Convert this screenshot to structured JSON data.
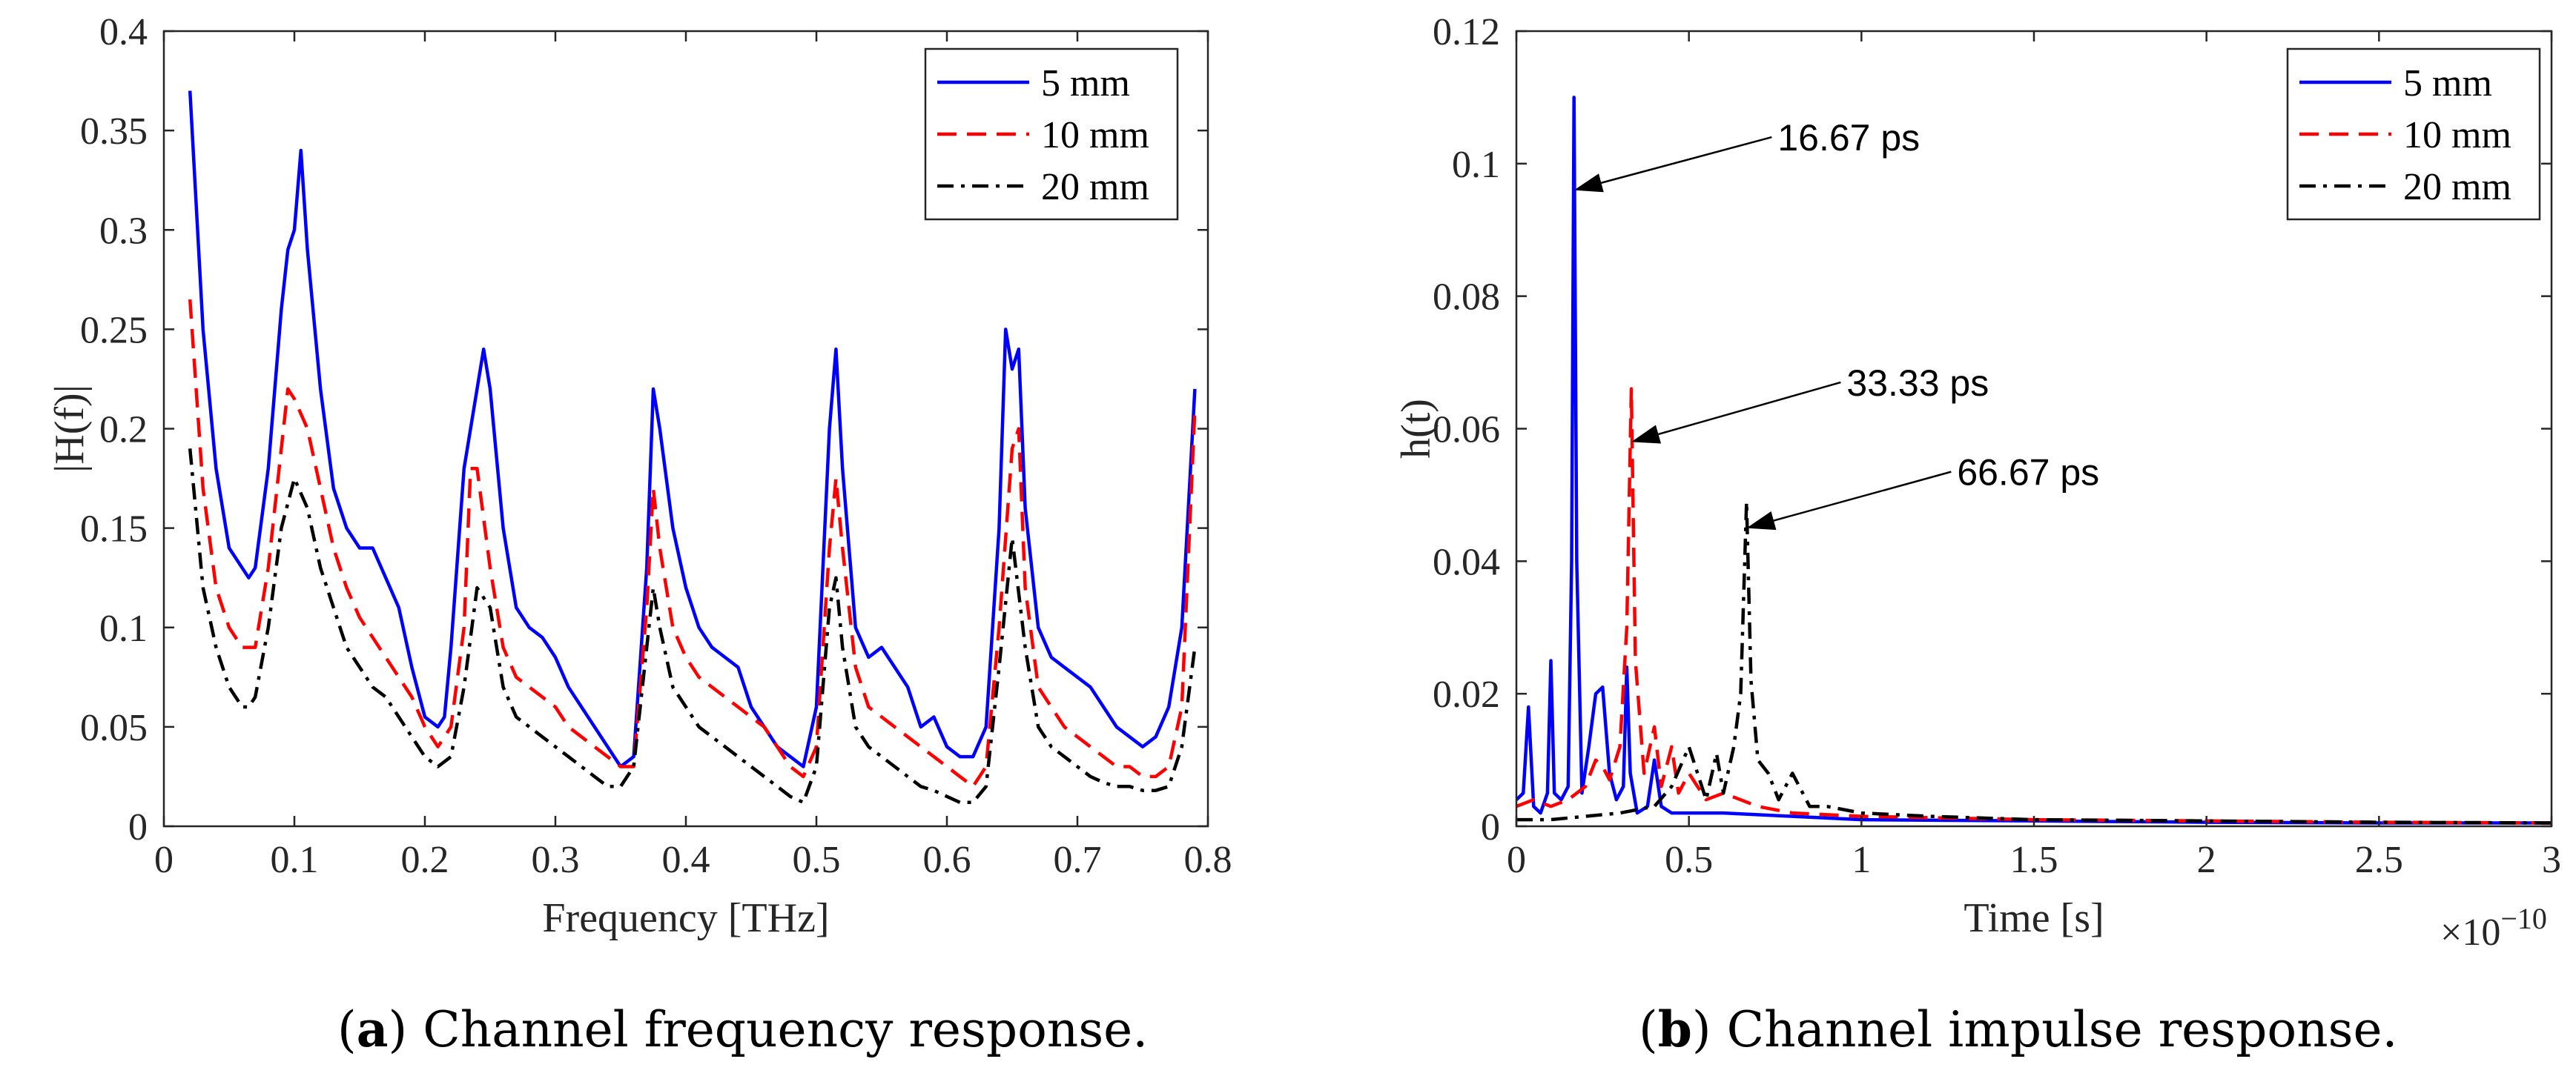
{
  "captions": [
    {
      "label": "a",
      "text": " Channel frequency response."
    },
    {
      "label": "b",
      "text": " Channel impulse response."
    }
  ],
  "chart_data": [
    {
      "type": "line",
      "title": "",
      "xlabel": "Frequency [THz]",
      "ylabel": "|H(f)|",
      "xlim": [
        0,
        0.8
      ],
      "ylim": [
        0,
        0.4
      ],
      "xticks": [
        0,
        0.1,
        0.2,
        0.3,
        0.4,
        0.5,
        0.6,
        0.7,
        0.8
      ],
      "xtick_labels": [
        "0",
        "0.1",
        "0.2",
        "0.3",
        "0.4",
        "0.5",
        "0.6",
        "0.7",
        "0.8"
      ],
      "yticks": [
        0,
        0.05,
        0.1,
        0.15,
        0.2,
        0.25,
        0.3,
        0.35,
        0.4
      ],
      "ytick_labels": [
        "0",
        "0.05",
        "0.1",
        "0.15",
        "0.2",
        "0.25",
        "0.3",
        "0.35",
        "0.4"
      ],
      "grid": false,
      "legend_position": "top-right",
      "series": [
        {
          "name": "5 mm",
          "color": "#0000ff",
          "style": "solid",
          "x": [
            0.02,
            0.03,
            0.04,
            0.05,
            0.06,
            0.065,
            0.07,
            0.08,
            0.09,
            0.095,
            0.1,
            0.105,
            0.11,
            0.12,
            0.13,
            0.14,
            0.15,
            0.16,
            0.17,
            0.18,
            0.19,
            0.2,
            0.21,
            0.215,
            0.22,
            0.23,
            0.24,
            0.245,
            0.25,
            0.26,
            0.27,
            0.28,
            0.29,
            0.3,
            0.31,
            0.32,
            0.33,
            0.34,
            0.35,
            0.36,
            0.37,
            0.375,
            0.38,
            0.39,
            0.4,
            0.41,
            0.42,
            0.43,
            0.44,
            0.45,
            0.46,
            0.47,
            0.48,
            0.49,
            0.5,
            0.51,
            0.515,
            0.52,
            0.53,
            0.54,
            0.55,
            0.56,
            0.57,
            0.58,
            0.59,
            0.6,
            0.61,
            0.62,
            0.63,
            0.64,
            0.645,
            0.65,
            0.655,
            0.66,
            0.67,
            0.68,
            0.69,
            0.7,
            0.71,
            0.72,
            0.73,
            0.74,
            0.75,
            0.76,
            0.77,
            0.78,
            0.79
          ],
          "y": [
            0.37,
            0.25,
            0.18,
            0.14,
            0.13,
            0.125,
            0.13,
            0.18,
            0.26,
            0.29,
            0.3,
            0.34,
            0.29,
            0.22,
            0.17,
            0.15,
            0.14,
            0.14,
            0.125,
            0.11,
            0.08,
            0.055,
            0.05,
            0.055,
            0.09,
            0.18,
            0.22,
            0.24,
            0.22,
            0.15,
            0.11,
            0.1,
            0.095,
            0.085,
            0.07,
            0.06,
            0.05,
            0.04,
            0.03,
            0.035,
            0.13,
            0.22,
            0.2,
            0.15,
            0.12,
            0.1,
            0.09,
            0.085,
            0.08,
            0.06,
            0.05,
            0.04,
            0.035,
            0.03,
            0.06,
            0.2,
            0.24,
            0.18,
            0.1,
            0.085,
            0.09,
            0.08,
            0.07,
            0.05,
            0.055,
            0.04,
            0.035,
            0.035,
            0.05,
            0.15,
            0.25,
            0.23,
            0.24,
            0.16,
            0.1,
            0.085,
            0.08,
            0.075,
            0.07,
            0.06,
            0.05,
            0.045,
            0.04,
            0.045,
            0.06,
            0.1,
            0.22
          ]
        },
        {
          "name": "10 mm",
          "color": "#ff0000",
          "style": "dashed",
          "x": [
            0.02,
            0.03,
            0.04,
            0.05,
            0.06,
            0.07,
            0.08,
            0.09,
            0.095,
            0.1,
            0.11,
            0.12,
            0.13,
            0.14,
            0.15,
            0.16,
            0.17,
            0.18,
            0.19,
            0.2,
            0.21,
            0.22,
            0.23,
            0.235,
            0.24,
            0.25,
            0.26,
            0.27,
            0.28,
            0.29,
            0.3,
            0.31,
            0.32,
            0.33,
            0.34,
            0.35,
            0.36,
            0.37,
            0.375,
            0.38,
            0.39,
            0.4,
            0.41,
            0.42,
            0.43,
            0.44,
            0.45,
            0.46,
            0.47,
            0.48,
            0.49,
            0.5,
            0.51,
            0.515,
            0.52,
            0.53,
            0.54,
            0.55,
            0.56,
            0.57,
            0.58,
            0.59,
            0.6,
            0.61,
            0.62,
            0.63,
            0.64,
            0.65,
            0.655,
            0.66,
            0.67,
            0.68,
            0.69,
            0.7,
            0.71,
            0.72,
            0.73,
            0.74,
            0.75,
            0.76,
            0.77,
            0.78,
            0.79
          ],
          "y": [
            0.265,
            0.17,
            0.12,
            0.1,
            0.09,
            0.09,
            0.13,
            0.19,
            0.22,
            0.215,
            0.2,
            0.17,
            0.14,
            0.12,
            0.105,
            0.095,
            0.085,
            0.075,
            0.065,
            0.05,
            0.04,
            0.05,
            0.1,
            0.18,
            0.18,
            0.13,
            0.09,
            0.075,
            0.07,
            0.065,
            0.06,
            0.05,
            0.045,
            0.04,
            0.035,
            0.03,
            0.03,
            0.11,
            0.17,
            0.14,
            0.1,
            0.085,
            0.075,
            0.07,
            0.065,
            0.06,
            0.055,
            0.05,
            0.04,
            0.03,
            0.025,
            0.04,
            0.14,
            0.175,
            0.14,
            0.08,
            0.06,
            0.055,
            0.05,
            0.045,
            0.04,
            0.035,
            0.03,
            0.025,
            0.02,
            0.03,
            0.1,
            0.19,
            0.2,
            0.12,
            0.07,
            0.06,
            0.05,
            0.045,
            0.04,
            0.035,
            0.03,
            0.03,
            0.025,
            0.025,
            0.03,
            0.06,
            0.21
          ]
        },
        {
          "name": "20 mm",
          "color": "#000000",
          "style": "dashdot",
          "x": [
            0.02,
            0.03,
            0.04,
            0.05,
            0.06,
            0.065,
            0.07,
            0.08,
            0.09,
            0.1,
            0.11,
            0.12,
            0.13,
            0.14,
            0.15,
            0.16,
            0.17,
            0.18,
            0.19,
            0.2,
            0.21,
            0.22,
            0.23,
            0.24,
            0.25,
            0.26,
            0.27,
            0.28,
            0.29,
            0.3,
            0.31,
            0.32,
            0.33,
            0.34,
            0.35,
            0.36,
            0.37,
            0.375,
            0.38,
            0.39,
            0.4,
            0.41,
            0.42,
            0.43,
            0.44,
            0.45,
            0.46,
            0.47,
            0.48,
            0.49,
            0.5,
            0.51,
            0.515,
            0.52,
            0.53,
            0.54,
            0.55,
            0.56,
            0.57,
            0.58,
            0.59,
            0.6,
            0.61,
            0.62,
            0.63,
            0.64,
            0.65,
            0.66,
            0.67,
            0.68,
            0.69,
            0.7,
            0.71,
            0.72,
            0.73,
            0.74,
            0.75,
            0.76,
            0.77,
            0.78,
            0.79
          ],
          "y": [
            0.19,
            0.12,
            0.09,
            0.07,
            0.06,
            0.06,
            0.065,
            0.1,
            0.15,
            0.175,
            0.16,
            0.13,
            0.11,
            0.09,
            0.08,
            0.07,
            0.065,
            0.055,
            0.045,
            0.035,
            0.03,
            0.035,
            0.07,
            0.12,
            0.11,
            0.07,
            0.055,
            0.05,
            0.045,
            0.04,
            0.035,
            0.03,
            0.025,
            0.02,
            0.02,
            0.03,
            0.09,
            0.12,
            0.1,
            0.07,
            0.06,
            0.05,
            0.045,
            0.04,
            0.035,
            0.03,
            0.025,
            0.02,
            0.015,
            0.012,
            0.03,
            0.11,
            0.125,
            0.09,
            0.05,
            0.04,
            0.035,
            0.03,
            0.025,
            0.02,
            0.018,
            0.015,
            0.012,
            0.012,
            0.02,
            0.08,
            0.145,
            0.09,
            0.05,
            0.04,
            0.035,
            0.03,
            0.025,
            0.022,
            0.02,
            0.02,
            0.018,
            0.018,
            0.02,
            0.04,
            0.09
          ]
        }
      ]
    },
    {
      "type": "line",
      "title": "",
      "xlabel": "Time [s]",
      "ylabel": "h(t)",
      "xlim": [
        0,
        3
      ],
      "ylim": [
        0,
        0.12
      ],
      "x_multiplier_label": "×10",
      "x_multiplier_exponent": "−10",
      "xticks": [
        0,
        0.5,
        1,
        1.5,
        2,
        2.5,
        3
      ],
      "xtick_labels": [
        "0",
        "0.5",
        "1",
        "1.5",
        "2",
        "2.5",
        "3"
      ],
      "yticks": [
        0,
        0.02,
        0.04,
        0.06,
        0.08,
        0.1,
        0.12
      ],
      "ytick_labels": [
        "0",
        "0.02",
        "0.04",
        "0.06",
        "0.08",
        "0.1",
        "0.12"
      ],
      "grid": false,
      "legend_position": "top-right",
      "annotations": [
        {
          "text": "16.67 ps",
          "x": 0.167,
          "y": 0.096,
          "text_x": 0.74,
          "text_y": 0.104
        },
        {
          "text": "33.33 ps",
          "x": 0.333,
          "y": 0.058,
          "text_x": 0.94,
          "text_y": 0.067
        },
        {
          "text": "66.67 ps",
          "x": 0.667,
          "y": 0.045,
          "text_x": 1.26,
          "text_y": 0.0535
        }
      ],
      "series": [
        {
          "name": "5 mm",
          "color": "#0000ff",
          "style": "solid",
          "x": [
            0,
            0.02,
            0.035,
            0.05,
            0.07,
            0.09,
            0.1,
            0.11,
            0.13,
            0.15,
            0.16,
            0.167,
            0.175,
            0.19,
            0.21,
            0.23,
            0.25,
            0.27,
            0.29,
            0.31,
            0.32,
            0.33,
            0.35,
            0.38,
            0.4,
            0.42,
            0.45,
            0.5,
            0.6,
            0.8,
            1.0,
            1.5,
            2.0,
            2.5,
            3.0
          ],
          "y": [
            0.004,
            0.005,
            0.018,
            0.003,
            0.002,
            0.005,
            0.025,
            0.005,
            0.004,
            0.006,
            0.04,
            0.11,
            0.04,
            0.005,
            0.012,
            0.02,
            0.021,
            0.008,
            0.004,
            0.006,
            0.024,
            0.008,
            0.002,
            0.003,
            0.01,
            0.003,
            0.002,
            0.002,
            0.002,
            0.0015,
            0.001,
            0.0008,
            0.0006,
            0.0005,
            0.0005
          ]
        },
        {
          "name": "10 mm",
          "color": "#ff0000",
          "style": "dashed",
          "x": [
            0,
            0.05,
            0.1,
            0.15,
            0.2,
            0.23,
            0.25,
            0.27,
            0.3,
            0.32,
            0.333,
            0.345,
            0.37,
            0.4,
            0.42,
            0.45,
            0.47,
            0.5,
            0.55,
            0.6,
            0.7,
            0.8,
            1.0,
            1.5,
            2.0,
            2.5,
            3.0
          ],
          "y": [
            0.003,
            0.004,
            0.003,
            0.004,
            0.006,
            0.01,
            0.009,
            0.007,
            0.012,
            0.03,
            0.066,
            0.025,
            0.008,
            0.015,
            0.006,
            0.012,
            0.005,
            0.008,
            0.004,
            0.005,
            0.003,
            0.002,
            0.0015,
            0.001,
            0.0008,
            0.0006,
            0.0005
          ]
        },
        {
          "name": "20 mm",
          "color": "#000000",
          "style": "dashdot",
          "x": [
            0,
            0.1,
            0.2,
            0.3,
            0.4,
            0.45,
            0.5,
            0.55,
            0.58,
            0.6,
            0.63,
            0.65,
            0.667,
            0.68,
            0.7,
            0.73,
            0.76,
            0.8,
            0.85,
            0.9,
            1.0,
            1.2,
            1.5,
            2.0,
            2.5,
            3.0
          ],
          "y": [
            0.001,
            0.001,
            0.0015,
            0.002,
            0.003,
            0.006,
            0.012,
            0.004,
            0.011,
            0.005,
            0.012,
            0.02,
            0.049,
            0.022,
            0.01,
            0.008,
            0.004,
            0.008,
            0.003,
            0.003,
            0.002,
            0.0015,
            0.001,
            0.0008,
            0.0006,
            0.0005
          ]
        }
      ]
    }
  ]
}
